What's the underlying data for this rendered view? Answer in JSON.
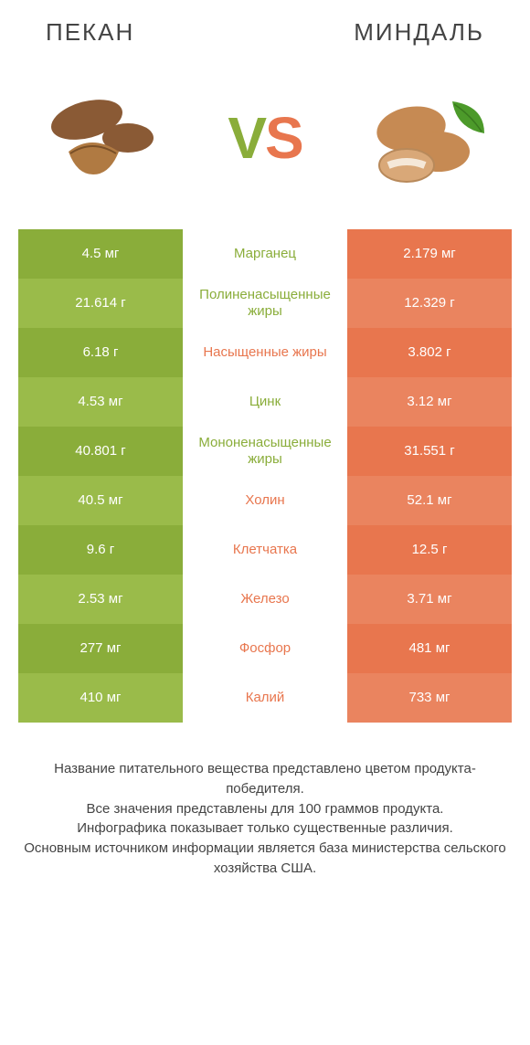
{
  "header": {
    "left_title": "ПЕКАН",
    "right_title": "МИНДАЛЬ"
  },
  "vs": {
    "v": "V",
    "s": "S"
  },
  "colors": {
    "left_a": "#8aad3a",
    "left_b": "#9abb4a",
    "right_a": "#e8764e",
    "right_b": "#ea845f",
    "mid_left": "#8aad3a",
    "mid_right": "#e8764e"
  },
  "rows": [
    {
      "left": "4.5 мг",
      "label": "Марганец",
      "right": "2.179 мг",
      "winner": "left"
    },
    {
      "left": "21.614 г",
      "label": "Полиненасыщенные жиры",
      "right": "12.329 г",
      "winner": "left"
    },
    {
      "left": "6.18 г",
      "label": "Насыщенные жиры",
      "right": "3.802 г",
      "winner": "right"
    },
    {
      "left": "4.53 мг",
      "label": "Цинк",
      "right": "3.12 мг",
      "winner": "left"
    },
    {
      "left": "40.801 г",
      "label": "Мононенасыщенные жиры",
      "right": "31.551 г",
      "winner": "left"
    },
    {
      "left": "40.5 мг",
      "label": "Холин",
      "right": "52.1 мг",
      "winner": "right"
    },
    {
      "left": "9.6 г",
      "label": "Клетчатка",
      "right": "12.5 г",
      "winner": "right"
    },
    {
      "left": "2.53 мг",
      "label": "Железо",
      "right": "3.71 мг",
      "winner": "right"
    },
    {
      "left": "277 мг",
      "label": "Фосфор",
      "right": "481 мг",
      "winner": "right"
    },
    {
      "left": "410 мг",
      "label": "Калий",
      "right": "733 мг",
      "winner": "right"
    }
  ],
  "footer": {
    "line1": "Название питательного вещества представлено цветом продукта-победителя.",
    "line2": "Все значения представлены для 100 граммов продукта.",
    "line3": "Инфографика показывает только существенные различия.",
    "line4": "Основным источником информации является база министерства сельского хозяйства США."
  }
}
